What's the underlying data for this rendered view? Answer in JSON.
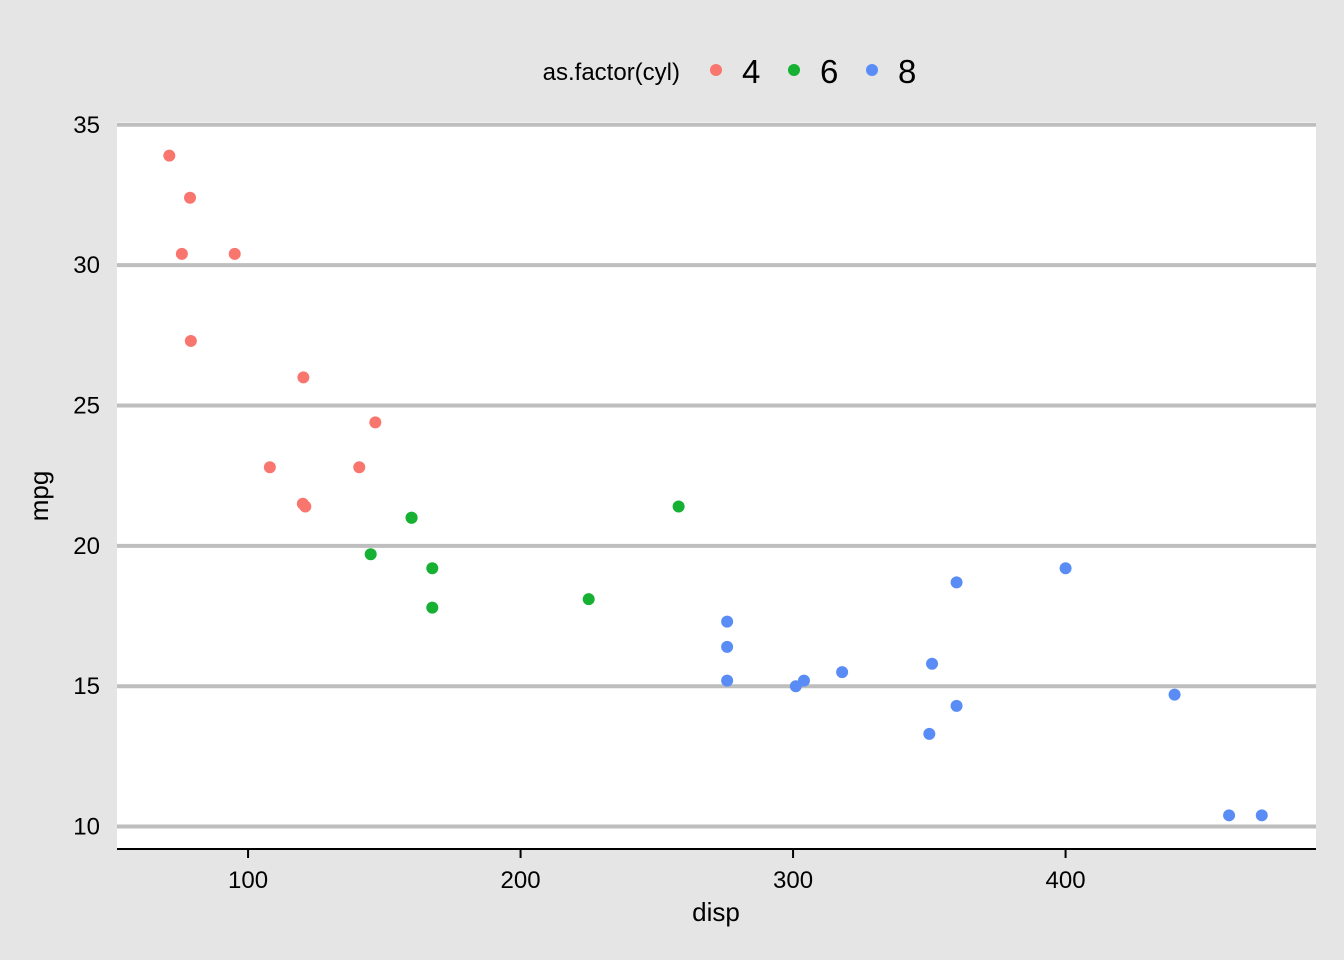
{
  "chart_data": {
    "type": "scatter",
    "xlabel": "disp",
    "ylabel": "mpg",
    "xlim": [
      51.9,
      491.9
    ],
    "ylim": [
      9.2,
      35.1
    ],
    "xticks": [
      100,
      200,
      300,
      400
    ],
    "yticks": [
      10,
      15,
      20,
      25,
      30,
      35
    ],
    "grid": "horizontal major lines",
    "legend": {
      "title": "as.factor(cyl)",
      "position": "top",
      "entries": [
        "4",
        "6",
        "8"
      ]
    },
    "series": [
      {
        "name": "4",
        "color": "#f8766d",
        "points": [
          {
            "x": 71.1,
            "y": 33.9
          },
          {
            "x": 78.7,
            "y": 32.4
          },
          {
            "x": 75.7,
            "y": 30.4
          },
          {
            "x": 95.1,
            "y": 30.4
          },
          {
            "x": 79.0,
            "y": 27.3
          },
          {
            "x": 120.3,
            "y": 26.0
          },
          {
            "x": 146.7,
            "y": 24.4
          },
          {
            "x": 108.0,
            "y": 22.8
          },
          {
            "x": 140.8,
            "y": 22.8
          },
          {
            "x": 120.1,
            "y": 21.5
          },
          {
            "x": 121.0,
            "y": 21.4
          }
        ]
      },
      {
        "name": "6",
        "color": "#16b033",
        "points": [
          {
            "x": 160.0,
            "y": 21.0
          },
          {
            "x": 258.0,
            "y": 21.4
          },
          {
            "x": 145.0,
            "y": 19.7
          },
          {
            "x": 167.6,
            "y": 19.2
          },
          {
            "x": 167.6,
            "y": 17.8
          },
          {
            "x": 225.0,
            "y": 18.1
          },
          {
            "x": 160.0,
            "y": 21.0
          }
        ]
      },
      {
        "name": "8",
        "color": "#5a8cf5",
        "points": [
          {
            "x": 275.8,
            "y": 17.3
          },
          {
            "x": 275.8,
            "y": 16.4
          },
          {
            "x": 275.8,
            "y": 15.2
          },
          {
            "x": 301.0,
            "y": 15.0
          },
          {
            "x": 304.0,
            "y": 15.2
          },
          {
            "x": 318.0,
            "y": 15.5
          },
          {
            "x": 350.0,
            "y": 13.3
          },
          {
            "x": 351.0,
            "y": 15.8
          },
          {
            "x": 360.0,
            "y": 18.7
          },
          {
            "x": 360.0,
            "y": 14.3
          },
          {
            "x": 400.0,
            "y": 19.2
          },
          {
            "x": 440.0,
            "y": 14.7
          },
          {
            "x": 460.0,
            "y": 10.4
          },
          {
            "x": 472.0,
            "y": 10.4
          }
        ]
      }
    ]
  }
}
